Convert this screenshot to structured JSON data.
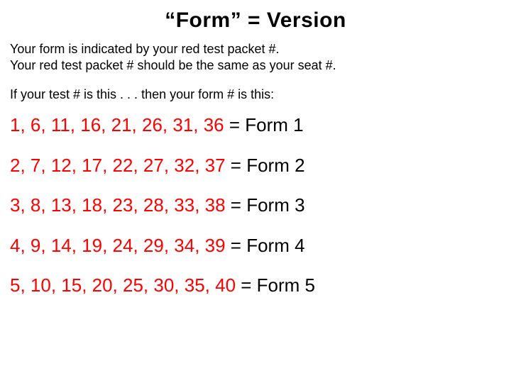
{
  "title": "“Form” = Version",
  "intro_line1": "Your form is indicated by your red test packet #.",
  "intro_line2": "Your red test packet # should be the same as your seat #.",
  "lead": "If your test # is this . . . then your form # is this:",
  "colors": {
    "numbers": "#ff0000",
    "text": "#000000",
    "background": "#ffffff"
  },
  "typography": {
    "title_fontsize": 30,
    "body_fontsize": 18,
    "row_fontsize": 26,
    "font_family": "Arial"
  },
  "rows": [
    {
      "numbers": "1, 6, 11, 16, 21, 26, 31, 36",
      "label": " = Form 1"
    },
    {
      "numbers": "2, 7, 12, 17, 22, 27, 32, 37",
      "label": " = Form 2"
    },
    {
      "numbers": "3, 8, 13, 18, 23, 28, 33, 38",
      "label": " = Form 3"
    },
    {
      "numbers": "4, 9, 14, 19, 24, 29, 34, 39",
      "label": " = Form 4"
    },
    {
      "numbers": "5, 10, 15, 20, 25, 30, 35, 40",
      "label": " = Form 5"
    }
  ]
}
